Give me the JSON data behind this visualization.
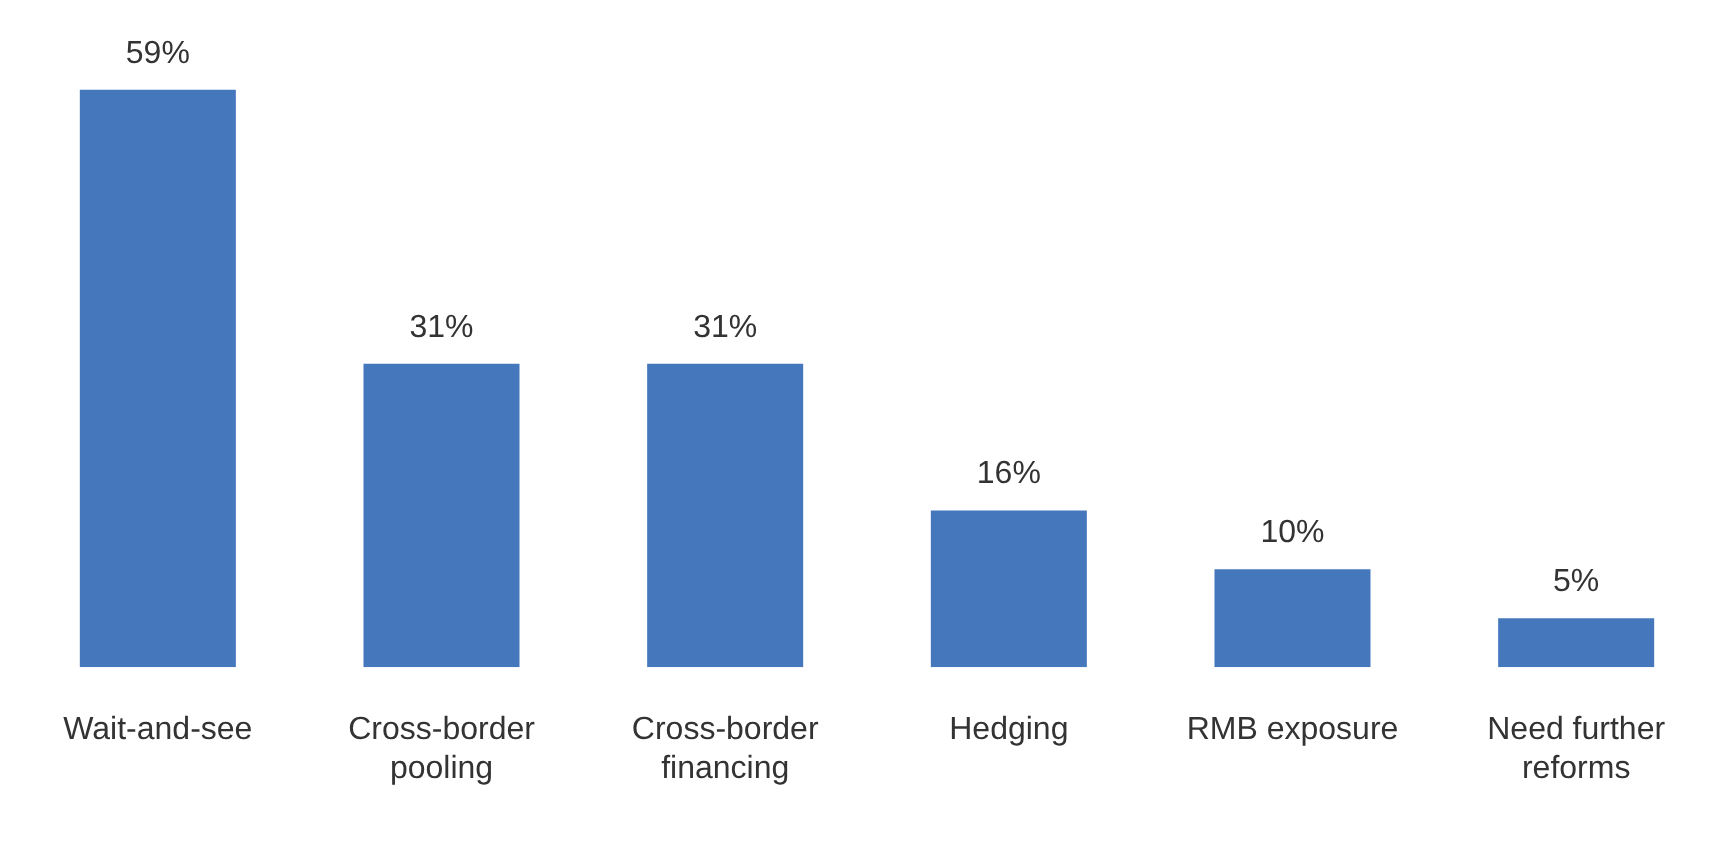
{
  "chart_data": {
    "type": "bar",
    "categories": [
      "Wait-and-see",
      "Cross-border pooling",
      "Cross-border financing",
      "Hedging",
      "RMB exposure",
      "Need further reforms"
    ],
    "values": [
      59,
      31,
      31,
      16,
      10,
      5
    ],
    "value_labels": [
      "59%",
      "31%",
      "31%",
      "16%",
      "10%",
      "5%"
    ],
    "color": "#4577bd",
    "grid": false,
    "legend": false
  }
}
